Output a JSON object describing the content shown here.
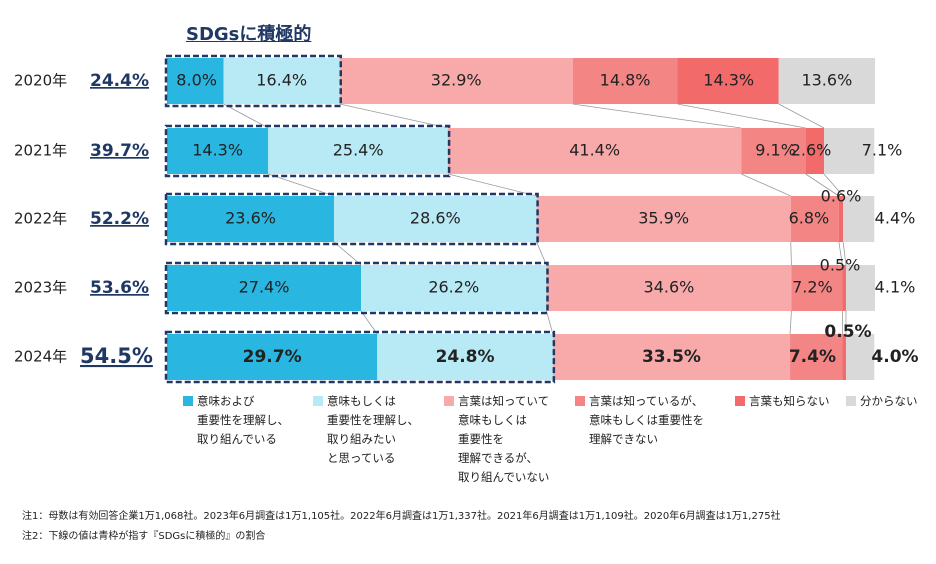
{
  "chart_data": {
    "type": "bar",
    "orientation": "horizontal",
    "stacked": true,
    "title": "SDGsに積極的",
    "categories": [
      "2020年",
      "2021年",
      "2022年",
      "2023年",
      "2024年"
    ],
    "highlight_values": [
      "24.4%",
      "39.7%",
      "52.2%",
      "53.6%",
      "54.5%"
    ],
    "series": [
      {
        "name": "意味および重要性を理解し、取り組んでいる",
        "color": "#29b6e0",
        "values": [
          8.0,
          14.3,
          23.6,
          27.4,
          29.7
        ]
      },
      {
        "name": "意味もしくは重要性を理解し、取り組みたいと思っている",
        "color": "#b8eaf6",
        "values": [
          16.4,
          25.4,
          28.6,
          26.2,
          24.8
        ]
      },
      {
        "name": "言葉は知っていて意味もしくは重要性を理解できるが、取り組んでいない",
        "color": "#f8aaaa",
        "values": [
          32.9,
          41.4,
          35.9,
          34.6,
          33.5
        ]
      },
      {
        "name": "言葉は知っているが、意味もしくは重要性を理解できない",
        "color": "#f48585",
        "values": [
          14.8,
          9.1,
          6.8,
          7.2,
          7.4
        ]
      },
      {
        "name": "言葉も知らない",
        "color": "#f26a6a",
        "values": [
          14.3,
          2.6,
          0.6,
          0.5,
          0.5
        ]
      },
      {
        "name": "分からない",
        "color": "#d9d9d9",
        "values": [
          13.6,
          7.1,
          4.4,
          4.1,
          4.0
        ]
      }
    ],
    "value_labels": [
      [
        "8.0%",
        "16.4%",
        "32.9%",
        "14.8%",
        "14.3%",
        "13.6%"
      ],
      [
        "14.3%",
        "25.4%",
        "41.4%",
        "9.1%",
        "2.6%",
        "7.1%"
      ],
      [
        "23.6%",
        "28.6%",
        "35.9%",
        "6.8%",
        "0.6%",
        "4.4%"
      ],
      [
        "27.4%",
        "26.2%",
        "34.6%",
        "7.2%",
        "0.5%",
        "4.1%"
      ],
      [
        "29.7%",
        "24.8%",
        "33.5%",
        "7.4%",
        "0.5%",
        "4.0%"
      ]
    ],
    "legend": [
      [
        "意味および",
        "重要性を理解し、",
        "取り組んでいる"
      ],
      [
        "意味もしくは",
        "重要性を理解し、",
        "取り組みたい",
        "と思っている"
      ],
      [
        "言葉は知っていて",
        "意味もしくは",
        "重要性を",
        "理解できるが、",
        "取り組んでいない"
      ],
      [
        "言葉は知っているが、",
        "意味もしくは重要性を",
        "理解できない"
      ],
      [
        "言葉も知らない"
      ],
      [
        "分からない"
      ]
    ],
    "legend_position": "bottom",
    "xlim": [
      0,
      100
    ],
    "grid": false
  },
  "notes": [
    "注1：母数は有効回答企業1万1,068社。2023年6月調査は1万1,105社。2022年6月調査は1万1,337社。2021年6月調査は1万1,109社。2020年6月調査は1万1,275社",
    "注2：下線の値は青枠が指す『SDGsに積極的』の割合"
  ]
}
